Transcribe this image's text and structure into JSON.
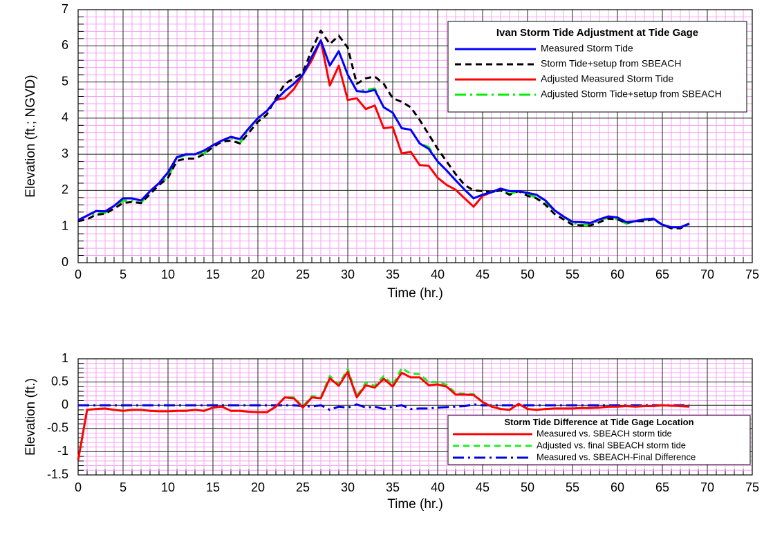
{
  "chart_data": [
    {
      "type": "line",
      "ylabel": "Elevation (ft.; NGVD)",
      "xlabel": "Time (hr.)",
      "legend_title": "Ivan Storm Tide Adjustment at Tide Gage",
      "legend": "upper right",
      "xlim": [
        0,
        75
      ],
      "xticks": [
        0,
        5,
        10,
        15,
        20,
        25,
        30,
        35,
        40,
        45,
        50,
        55,
        60,
        65,
        70,
        75
      ],
      "ylim": [
        0,
        7
      ],
      "yticks": [
        0,
        1,
        2,
        3,
        4,
        5,
        6,
        7
      ],
      "grid": true,
      "x": [
        0,
        1,
        2,
        3,
        4,
        5,
        6,
        7,
        8,
        9,
        10,
        11,
        12,
        13,
        14,
        15,
        16,
        17,
        18,
        19,
        20,
        21,
        22,
        23,
        24,
        25,
        26,
        27,
        28,
        29,
        30,
        31,
        32,
        33,
        34,
        35,
        36,
        37,
        38,
        39,
        40,
        41,
        42,
        43,
        44,
        45,
        46,
        47,
        48,
        49,
        50,
        51,
        52,
        53,
        54,
        55,
        56,
        57,
        58,
        59,
        60,
        61,
        62,
        63,
        64,
        65,
        66,
        67,
        68
      ],
      "series": [
        {
          "name": "Measured Storm Tide",
          "color": "#0000ff",
          "style": "solid",
          "values": [
            1.18,
            1.3,
            1.43,
            1.42,
            1.57,
            1.78,
            1.78,
            1.72,
            1.98,
            2.2,
            2.5,
            2.92,
            3.0,
            3.0,
            3.1,
            3.25,
            3.38,
            3.48,
            3.42,
            3.72,
            4.0,
            4.2,
            4.5,
            4.75,
            4.95,
            5.2,
            5.7,
            6.15,
            5.45,
            5.85,
            5.2,
            4.75,
            4.72,
            4.78,
            4.3,
            4.15,
            3.72,
            3.68,
            3.3,
            3.15,
            2.8,
            2.55,
            2.28,
            2.02,
            1.78,
            1.88,
            1.95,
            2.05,
            1.98,
            1.98,
            1.93,
            1.88,
            1.72,
            1.45,
            1.28,
            1.13,
            1.12,
            1.1,
            1.2,
            1.28,
            1.25,
            1.12,
            1.15,
            1.2,
            1.22,
            1.05,
            0.98,
            0.98,
            1.08
          ]
        },
        {
          "name": "Storm Tide+setup from SBEACH",
          "color": "#000000",
          "style": "dashed",
          "values": [
            1.15,
            1.2,
            1.33,
            1.35,
            1.5,
            1.65,
            1.68,
            1.65,
            1.9,
            2.15,
            2.35,
            2.82,
            2.88,
            2.88,
            3.0,
            3.2,
            3.35,
            3.38,
            3.3,
            3.6,
            3.9,
            4.1,
            4.55,
            4.95,
            5.1,
            5.25,
            5.9,
            6.42,
            6.05,
            6.28,
            5.95,
            4.95,
            5.1,
            5.15,
            4.95,
            4.55,
            4.45,
            4.3,
            3.95,
            3.55,
            3.15,
            2.8,
            2.45,
            2.15,
            2.0,
            1.98,
            1.95,
            2.0,
            1.88,
            1.98,
            1.85,
            1.78,
            1.6,
            1.35,
            1.2,
            1.05,
            1.03,
            1.03,
            1.12,
            1.22,
            1.2,
            1.1,
            1.15,
            1.15,
            1.2,
            1.05,
            0.95,
            0.95,
            1.08
          ]
        },
        {
          "name": "Adjusted Measured Storm Tide",
          "color": "#ff0000",
          "style": "solid",
          "values": [
            1.18,
            1.3,
            1.43,
            1.42,
            1.57,
            1.78,
            1.78,
            1.72,
            1.98,
            2.2,
            2.5,
            2.92,
            3.0,
            3.0,
            3.1,
            3.25,
            3.38,
            3.48,
            3.42,
            3.72,
            4.0,
            4.2,
            4.5,
            4.55,
            4.8,
            5.2,
            5.6,
            6.15,
            4.9,
            5.45,
            4.5,
            4.55,
            4.25,
            4.35,
            3.72,
            3.75,
            3.02,
            3.07,
            2.7,
            2.68,
            2.35,
            2.15,
            2.02,
            1.78,
            1.55,
            1.85,
            1.95,
            2.05,
            1.98,
            1.98,
            1.93,
            1.88,
            1.72,
            1.45,
            1.28,
            1.13,
            1.12,
            1.1,
            1.2,
            1.28,
            1.25,
            1.12,
            1.15,
            1.2,
            1.22,
            1.05,
            0.98,
            0.98,
            1.08
          ]
        },
        {
          "name": "Adjusted Storm Tide+setup from SBEACH",
          "color": "#00ee00",
          "style": "dashdot",
          "values": [
            1.18,
            1.3,
            1.35,
            1.38,
            1.57,
            1.72,
            1.72,
            1.65,
            1.98,
            2.2,
            2.35,
            2.9,
            2.98,
            3.0,
            3.02,
            3.25,
            3.38,
            3.45,
            3.3,
            3.7,
            4.0,
            4.2,
            4.5,
            4.75,
            4.95,
            5.2,
            5.7,
            6.15,
            5.45,
            5.85,
            5.2,
            4.75,
            4.78,
            4.82,
            4.3,
            4.15,
            3.72,
            3.68,
            3.3,
            3.2,
            2.8,
            2.55,
            2.28,
            2.02,
            1.78,
            1.88,
            1.95,
            2.0,
            1.9,
            1.98,
            1.9,
            1.8,
            1.65,
            1.45,
            1.28,
            1.1,
            1.05,
            1.05,
            1.18,
            1.25,
            1.2,
            1.08,
            1.15,
            1.18,
            1.2,
            1.05,
            0.98,
            0.98,
            1.08
          ]
        }
      ]
    },
    {
      "type": "line",
      "ylabel": "Elevation (ft.)",
      "xlabel": "Time (hr.)",
      "legend_title": "Storm Tide Difference at Tide Gage Location",
      "legend": "lower right",
      "xlim": [
        0,
        75
      ],
      "xticks": [
        0,
        5,
        10,
        15,
        20,
        25,
        30,
        35,
        40,
        45,
        50,
        55,
        60,
        65,
        70,
        75
      ],
      "ylim": [
        -1.5,
        1
      ],
      "yticks": [
        1,
        0.5,
        0,
        -0.5,
        -1,
        -1.5
      ],
      "grid": true,
      "x": [
        0,
        1,
        2,
        3,
        4,
        5,
        6,
        7,
        8,
        9,
        10,
        11,
        12,
        13,
        14,
        15,
        16,
        17,
        18,
        19,
        20,
        21,
        22,
        23,
        24,
        25,
        26,
        27,
        28,
        29,
        30,
        31,
        32,
        33,
        34,
        35,
        36,
        37,
        38,
        39,
        40,
        41,
        42,
        43,
        44,
        45,
        46,
        47,
        48,
        49,
        50,
        51,
        52,
        53,
        54,
        55,
        56,
        57,
        58,
        59,
        60,
        61,
        62,
        63,
        64,
        65,
        66,
        67,
        68
      ],
      "series": [
        {
          "name": "Measured vs. SBEACH storm tide",
          "color": "#ff0000",
          "style": "solid",
          "values": [
            -1.18,
            -0.1,
            -0.08,
            -0.07,
            -0.1,
            -0.12,
            -0.1,
            -0.1,
            -0.12,
            -0.13,
            -0.13,
            -0.12,
            -0.12,
            -0.1,
            -0.12,
            -0.05,
            -0.03,
            -0.12,
            -0.12,
            -0.14,
            -0.15,
            -0.15,
            -0.03,
            0.17,
            0.15,
            -0.05,
            0.17,
            0.15,
            0.58,
            0.42,
            0.72,
            0.17,
            0.43,
            0.38,
            0.57,
            0.4,
            0.7,
            0.6,
            0.6,
            0.43,
            0.45,
            0.4,
            0.23,
            0.23,
            0.22,
            0.07,
            -0.03,
            -0.08,
            -0.1,
            0.03,
            -0.08,
            -0.1,
            -0.08,
            -0.07,
            -0.07,
            -0.07,
            -0.06,
            -0.06,
            -0.05,
            -0.03,
            -0.03,
            -0.02,
            -0.03,
            -0.02,
            -0.02,
            0.0,
            -0.01,
            -0.02,
            -0.03
          ]
        },
        {
          "name": "Adjusted vs. final SBEACH storm tide",
          "color": "#22ee22",
          "style": "dashed",
          "values": [
            -1.18,
            -0.1,
            -0.08,
            -0.07,
            -0.1,
            -0.12,
            -0.1,
            -0.1,
            -0.12,
            -0.13,
            -0.13,
            -0.12,
            -0.12,
            -0.1,
            -0.12,
            -0.05,
            -0.03,
            -0.12,
            -0.12,
            -0.14,
            -0.15,
            -0.15,
            -0.03,
            0.17,
            0.17,
            -0.03,
            0.2,
            0.18,
            0.63,
            0.45,
            0.78,
            0.2,
            0.48,
            0.42,
            0.63,
            0.43,
            0.8,
            0.68,
            0.67,
            0.5,
            0.5,
            0.44,
            0.26,
            0.25,
            0.24,
            0.07,
            -0.03,
            -0.08,
            -0.1,
            0.03,
            -0.08,
            -0.1,
            -0.08,
            -0.07,
            -0.07,
            -0.07,
            -0.06,
            -0.06,
            -0.05,
            -0.03,
            -0.03,
            -0.02,
            -0.03,
            -0.02,
            -0.02,
            0.0,
            -0.01,
            -0.02,
            -0.03
          ]
        },
        {
          "name": "Measured vs. SBEACH-Final Difference",
          "color": "#0000dd",
          "style": "dashdot",
          "values": [
            0,
            0,
            0,
            0,
            0,
            0,
            0,
            0,
            0,
            0,
            0,
            0,
            0,
            0,
            0,
            0,
            0,
            0,
            0,
            0,
            0,
            0,
            0,
            0,
            0,
            -0.02,
            -0.03,
            0,
            -0.1,
            -0.03,
            -0.05,
            0.02,
            -0.05,
            -0.03,
            -0.08,
            -0.03,
            0,
            -0.08,
            -0.07,
            -0.07,
            -0.05,
            -0.04,
            -0.03,
            -0.02,
            0.02,
            0,
            0,
            0,
            0,
            0,
            0,
            0,
            0,
            0,
            0,
            0,
            0,
            0,
            0,
            0,
            0,
            0,
            0,
            0,
            0,
            0,
            0,
            0,
            0
          ]
        }
      ]
    }
  ]
}
